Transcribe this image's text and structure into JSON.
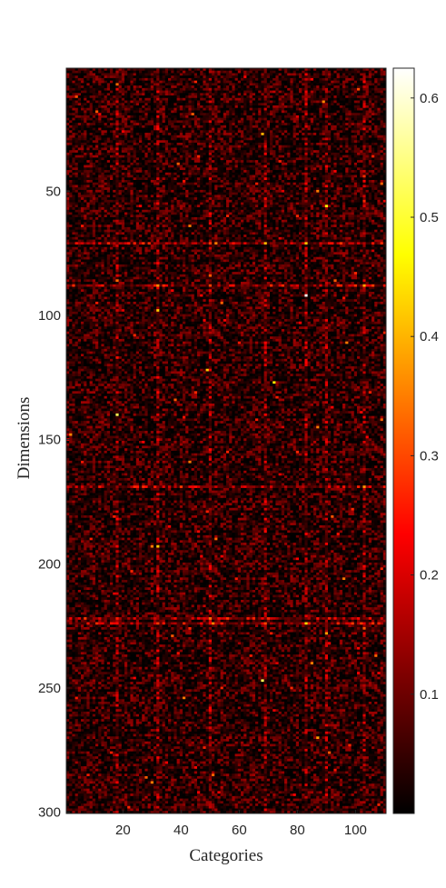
{
  "chart_data": {
    "type": "heatmap",
    "title": "",
    "xlabel": "Categories",
    "ylabel": "Dimensions",
    "x_range": [
      1,
      110
    ],
    "y_range": [
      1,
      300
    ],
    "y_reversed": true,
    "x_ticks": [
      20,
      40,
      60,
      80,
      100
    ],
    "y_ticks": [
      50,
      100,
      150,
      200,
      250,
      300
    ],
    "colorbar": {
      "colormap": "hot",
      "range": [
        0,
        0.625
      ],
      "ticks": [
        0.1,
        0.2,
        0.3,
        0.4,
        0.5,
        0.6
      ]
    },
    "typical_value_range": [
      0,
      0.15
    ],
    "max_value": 0.62,
    "bright_rows": [
      71,
      88,
      169,
      222,
      224
    ],
    "bright_columns": [
      18,
      32,
      50,
      69,
      83,
      90,
      103
    ],
    "peaks": [
      {
        "x": 83,
        "y": 92,
        "value": 0.62
      },
      {
        "x": 18,
        "y": 140,
        "value": 0.52
      },
      {
        "x": 68,
        "y": 247,
        "value": 0.52
      },
      {
        "x": 90,
        "y": 56,
        "value": 0.46
      },
      {
        "x": 72,
        "y": 127,
        "value": 0.45
      },
      {
        "x": 49,
        "y": 122,
        "value": 0.42
      },
      {
        "x": 32,
        "y": 193,
        "value": 0.42
      },
      {
        "x": 68,
        "y": 27,
        "value": 0.4
      },
      {
        "x": 87,
        "y": 270,
        "value": 0.38
      },
      {
        "x": 90,
        "y": 228,
        "value": 0.38
      },
      {
        "x": 2,
        "y": 148,
        "value": 0.36
      },
      {
        "x": 52,
        "y": 71,
        "value": 0.35
      },
      {
        "x": 51,
        "y": 224,
        "value": 0.35
      },
      {
        "x": 18,
        "y": 7,
        "value": 0.33
      },
      {
        "x": 44,
        "y": 19,
        "value": 0.32
      },
      {
        "x": 28,
        "y": 286,
        "value": 0.32
      }
    ]
  }
}
